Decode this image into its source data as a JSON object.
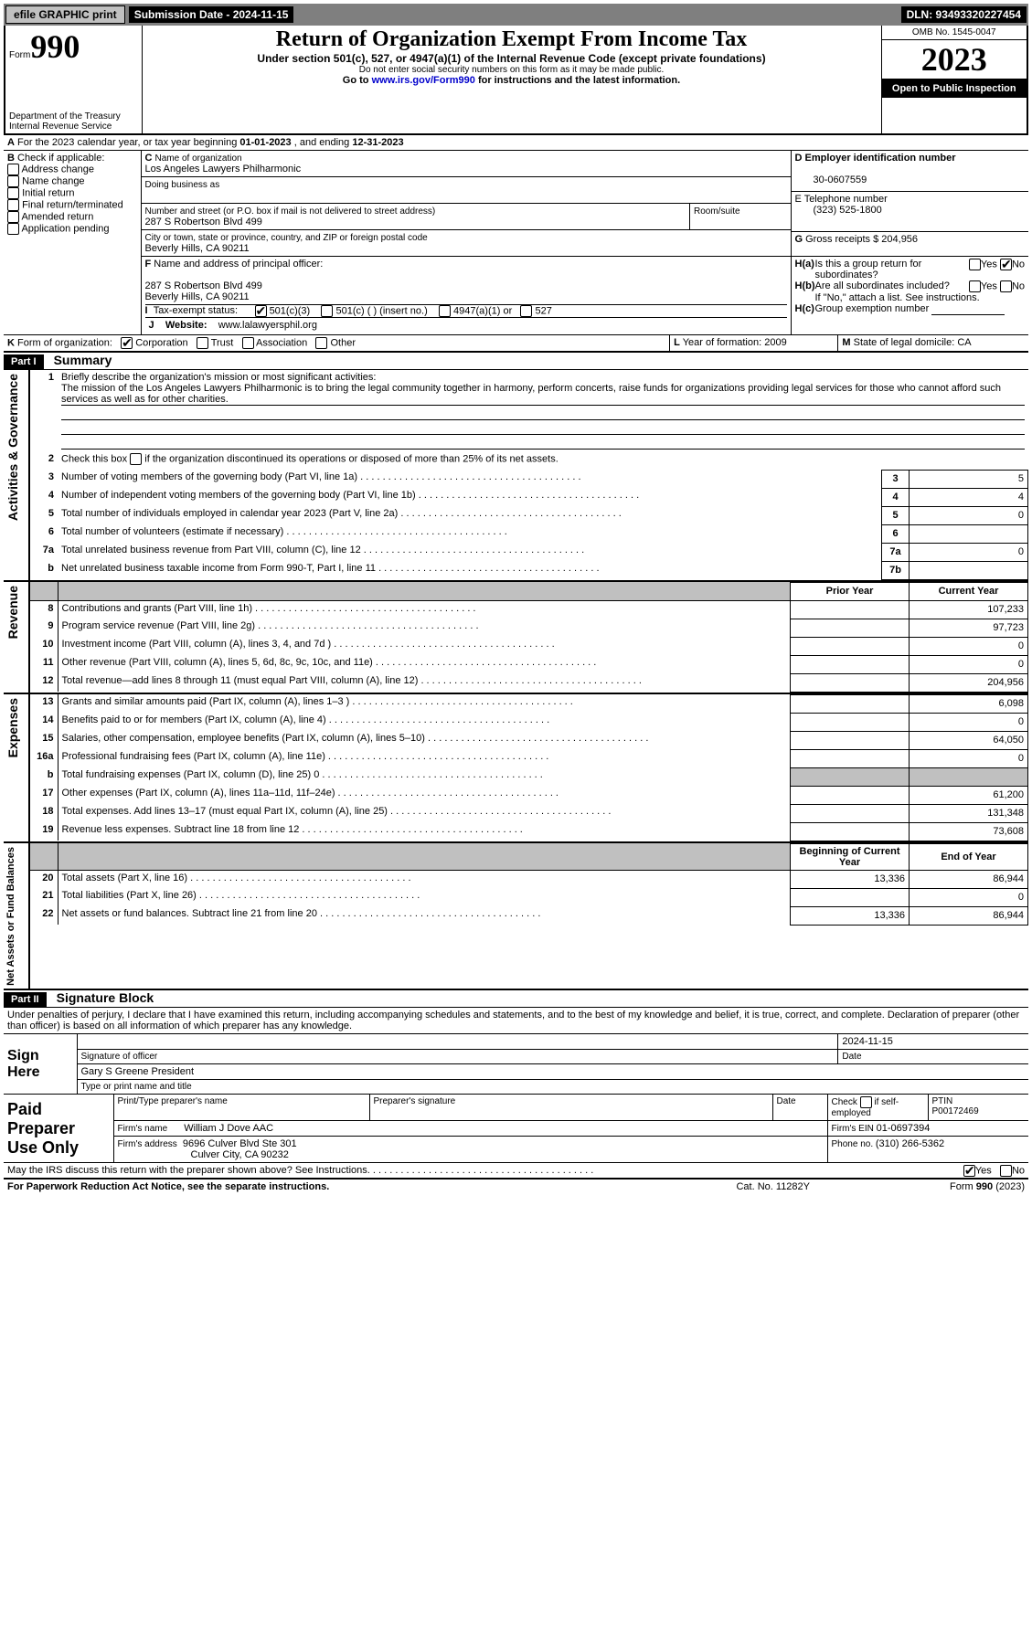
{
  "topbar": {
    "efile_label": "efile GRAPHIC print",
    "submission_label": "Submission Date - 2024-11-15",
    "dln_label": "DLN: 93493320227454"
  },
  "header": {
    "form_prefix": "Form",
    "form_number": "990",
    "title": "Return of Organization Exempt From Income Tax",
    "subtitle": "Under section 501(c), 527, or 4947(a)(1) of the Internal Revenue Code (except private foundations)",
    "warning": "Do not enter social security numbers on this form as it may be made public.",
    "goto_prefix": "Go to ",
    "goto_link": "www.irs.gov/Form990",
    "goto_suffix": " for instructions and the latest information.",
    "department": "Department of the Treasury\nInternal Revenue Service",
    "omb": "OMB No. 1545-0047",
    "year": "2023",
    "open_public": "Open to Public Inspection"
  },
  "sectionA": {
    "label_a": "A",
    "a_text_pre": "For the 2023 calendar year, or tax year beginning ",
    "a_begin": "01-01-2023",
    "a_mid": " , and ending ",
    "a_end": "12-31-2023",
    "b_label": "B",
    "b_check": "Check if applicable:",
    "b_items": [
      "Address change",
      "Name change",
      "Initial return",
      "Final return/terminated",
      "Amended return",
      "Application pending"
    ],
    "c_label": "C",
    "c_name_label": "Name of organization",
    "c_name": "Los Angeles Lawyers Philharmonic",
    "c_dba_label": "Doing business as",
    "c_dba": "",
    "c_street_label": "Number and street (or P.O. box if mail is not delivered to street address)",
    "c_street": "287 S Robertson Blvd 499",
    "c_room_label": "Room/suite",
    "c_city_label": "City or town, state or province, country, and ZIP or foreign postal code",
    "c_city": "Beverly Hills, CA  90211",
    "d_label": "D Employer identification number",
    "d_ein": "30-0607559",
    "e_label": "E Telephone number",
    "e_phone": "(323) 525-1800",
    "g_label": "G",
    "g_text": "Gross receipts $",
    "g_val": "204,956",
    "f_label": "F",
    "f_text": "Name and address of principal officer:",
    "f_addr1": "287 S Robertson Blvd 499",
    "f_addr2": "Beverly Hills, CA  90211",
    "i_label": "I",
    "i_text": "Tax-exempt status:",
    "i_501c3": "501(c)(3)",
    "i_501c": "501(c) (  ) (insert no.)",
    "i_4947": "4947(a)(1) or",
    "i_527": "527",
    "j_label": "J",
    "j_text": "Website: ",
    "j_val": "www.lalawyersphil.org",
    "ha_label": "H(a)",
    "ha_text": "Is this a group return for subordinates?",
    "hb_label": "H(b)",
    "hb_text": "Are all subordinates included?",
    "hb_note": "If \"No,\" attach a list. See instructions.",
    "hc_label": "H(c)",
    "hc_text": "Group exemption number ",
    "yes": "Yes",
    "no": "No",
    "k_label": "K",
    "k_text": "Form of organization:",
    "k_corp": "Corporation",
    "k_trust": "Trust",
    "k_assoc": "Association",
    "k_other": "Other ",
    "l_label": "L",
    "l_text": "Year of formation: ",
    "l_val": "2009",
    "m_label": "M",
    "m_text": "State of legal domicile: ",
    "m_val": "CA"
  },
  "part1": {
    "header": "Part I",
    "title": "Summary",
    "vlabel_activities": "Activities & Governance",
    "vlabel_revenue": "Revenue",
    "vlabel_expenses": "Expenses",
    "vlabel_netassets": "Net Assets or Fund Balances",
    "line1_label": "1",
    "line1_text": "Briefly describe the organization's mission or most significant activities:",
    "line1_val": "The mission of the Los Angeles Lawyers Philharmonic is to bring the legal community together in harmony, perform concerts, raise funds for organizations providing legal services for those who cannot afford such services as well as for other charities.",
    "line2_label": "2",
    "line2_text": "Check this box  if the organization discontinued its operations or disposed of more than 25% of its net assets.",
    "rows_numbered": [
      {
        "n": "3",
        "desc": "Number of voting members of the governing body (Part VI, line 1a)",
        "box": "3",
        "val": "5"
      },
      {
        "n": "4",
        "desc": "Number of independent voting members of the governing body (Part VI, line 1b)",
        "box": "4",
        "val": "4"
      },
      {
        "n": "5",
        "desc": "Total number of individuals employed in calendar year 2023 (Part V, line 2a)",
        "box": "5",
        "val": "0"
      },
      {
        "n": "6",
        "desc": "Total number of volunteers (estimate if necessary)",
        "box": "6",
        "val": ""
      },
      {
        "n": "7a",
        "desc": "Total unrelated business revenue from Part VIII, column (C), line 12",
        "box": "7a",
        "val": "0"
      },
      {
        "n": "",
        "desc": "Net unrelated business taxable income from Form 990-T, Part I, line 11",
        "box": "7b",
        "val": ""
      },
      {
        "n": "b",
        "desc": "",
        "box": "",
        "val": ""
      }
    ],
    "col_prior": "Prior Year",
    "col_current": "Current Year",
    "col_begin": "Beginning of Current Year",
    "col_end": "End of Year",
    "rev_rows": [
      {
        "n": "8",
        "desc": "Contributions and grants (Part VIII, line 1h)",
        "prior": "",
        "cur": "107,233"
      },
      {
        "n": "9",
        "desc": "Program service revenue (Part VIII, line 2g)",
        "prior": "",
        "cur": "97,723"
      },
      {
        "n": "10",
        "desc": "Investment income (Part VIII, column (A), lines 3, 4, and 7d )",
        "prior": "",
        "cur": "0"
      },
      {
        "n": "11",
        "desc": "Other revenue (Part VIII, column (A), lines 5, 6d, 8c, 9c, 10c, and 11e)",
        "prior": "",
        "cur": "0"
      },
      {
        "n": "12",
        "desc": "Total revenue—add lines 8 through 11 (must equal Part VIII, column (A), line 12)",
        "prior": "",
        "cur": "204,956"
      }
    ],
    "exp_rows": [
      {
        "n": "13",
        "desc": "Grants and similar amounts paid (Part IX, column (A), lines 1–3 )",
        "prior": "",
        "cur": "6,098"
      },
      {
        "n": "14",
        "desc": "Benefits paid to or for members (Part IX, column (A), line 4)",
        "prior": "",
        "cur": "0"
      },
      {
        "n": "15",
        "desc": "Salaries, other compensation, employee benefits (Part IX, column (A), lines 5–10)",
        "prior": "",
        "cur": "64,050"
      },
      {
        "n": "16a",
        "desc": "Professional fundraising fees (Part IX, column (A), line 11e)",
        "prior": "",
        "cur": "0"
      },
      {
        "n": "b",
        "desc": "Total fundraising expenses (Part IX, column (D), line 25) 0",
        "prior": "GRAY",
        "cur": "GRAY"
      },
      {
        "n": "17",
        "desc": "Other expenses (Part IX, column (A), lines 11a–11d, 11f–24e)",
        "prior": "",
        "cur": "61,200"
      },
      {
        "n": "18",
        "desc": "Total expenses. Add lines 13–17 (must equal Part IX, column (A), line 25)",
        "prior": "",
        "cur": "131,348"
      },
      {
        "n": "19",
        "desc": "Revenue less expenses. Subtract line 18 from line 12",
        "prior": "",
        "cur": "73,608"
      }
    ],
    "net_rows": [
      {
        "n": "20",
        "desc": "Total assets (Part X, line 16)",
        "prior": "13,336",
        "cur": "86,944"
      },
      {
        "n": "21",
        "desc": "Total liabilities (Part X, line 26)",
        "prior": "",
        "cur": "0"
      },
      {
        "n": "22",
        "desc": "Net assets or fund balances. Subtract line 21 from line 20",
        "prior": "13,336",
        "cur": "86,944"
      }
    ]
  },
  "part2": {
    "header": "Part II",
    "title": "Signature Block",
    "perjury": "Under penalties of perjury, I declare that I have examined this return, including accompanying schedules and statements, and to the best of my knowledge and belief, it is true, correct, and complete. Declaration of preparer (other than officer) is based on all information of which preparer has any knowledge.",
    "sign_here": "Sign Here",
    "sig_officer_label": "Signature of officer",
    "sig_date": "2024-11-15",
    "officer_name": "Gary S Greene  President",
    "type_name_label": "Type or print name and title",
    "date_label": "Date",
    "paid_prep": "Paid Preparer Use Only",
    "print_name_label": "Print/Type preparer's name",
    "prep_sig_label": "Preparer's signature",
    "check_self": "Check  if self-employed",
    "ptin_label": "PTIN",
    "ptin": "P00172469",
    "firm_name_label": "Firm's name ",
    "firm_name": "William J Dove AAC",
    "firm_ein_label": "Firm's EIN ",
    "firm_ein": "01-0697394",
    "firm_addr_label": "Firm's address",
    "firm_addr1": "9696 Culver Blvd Ste 301",
    "firm_addr2": "Culver City, CA  90232",
    "phone_label": "Phone no. ",
    "phone": "(310) 266-5362",
    "discuss": "May the IRS discuss this return with the preparer shown above? See Instructions.",
    "paperwork": "For Paperwork Reduction Act Notice, see the separate instructions.",
    "catno": "Cat. No. 11282Y",
    "formfoot": "Form 990 (2023)"
  }
}
